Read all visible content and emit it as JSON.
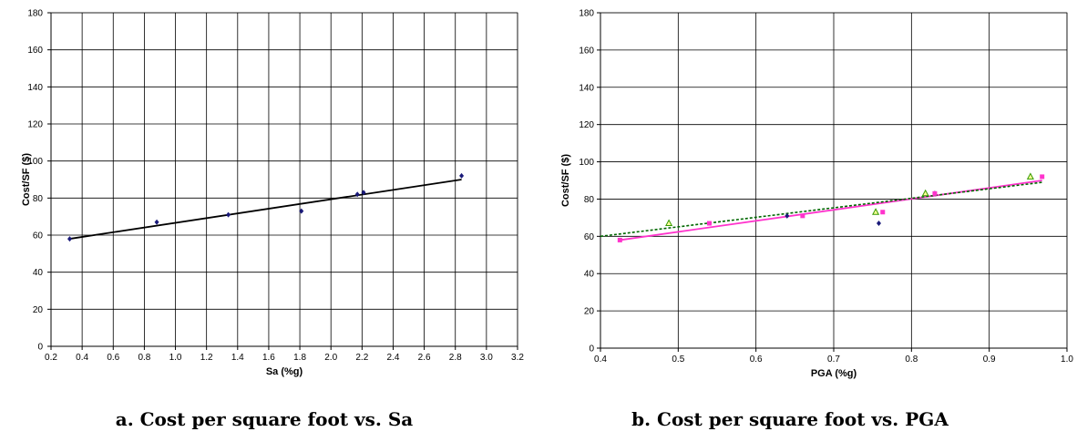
{
  "chart_data": [
    {
      "type": "scatter",
      "caption": "a. Cost per square foot vs. Sa",
      "xlabel": "Sa (%g)",
      "ylabel": "Cost/SF ($)",
      "xlim": [
        0.2,
        3.2
      ],
      "ylim": [
        0,
        180
      ],
      "xticks": [
        "0.2",
        "0.4",
        "0.6",
        "0.8",
        "1.0",
        "1.2",
        "1.4",
        "1.6",
        "1.8",
        "2.0",
        "2.2",
        "2.4",
        "2.6",
        "2.8",
        "3.0",
        "3.2"
      ],
      "yticks": [
        "0",
        "20",
        "40",
        "60",
        "80",
        "100",
        "120",
        "140",
        "160",
        "180"
      ],
      "grid": true,
      "series": [
        {
          "marker": "diamond",
          "color": "#1a1a7a",
          "points": [
            [
              0.32,
              58
            ],
            [
              0.88,
              67
            ],
            [
              1.34,
              71
            ],
            [
              1.81,
              73
            ],
            [
              2.17,
              82
            ],
            [
              2.21,
              83
            ],
            [
              2.84,
              92
            ]
          ]
        }
      ],
      "trendlines": [
        {
          "color": "#000000",
          "style": "solid",
          "from": [
            0.32,
            58
          ],
          "to": [
            2.84,
            90
          ]
        }
      ]
    },
    {
      "type": "scatter",
      "caption": "b. Cost per square foot vs. PGA",
      "xlabel": "PGA (%g)",
      "ylabel": "Cost/SF ($)",
      "xlim": [
        0.4,
        1.0
      ],
      "ylim": [
        0,
        180
      ],
      "xticks": [
        "0.4",
        "0.5",
        "0.6",
        "0.7",
        "0.8",
        "0.9",
        "1.0"
      ],
      "yticks": [
        "0",
        "20",
        "40",
        "60",
        "80",
        "100",
        "120",
        "140",
        "160",
        "180"
      ],
      "grid": true,
      "series": [
        {
          "marker": "diamond",
          "color": "#1a1a7a",
          "points": [
            [
              0.64,
              71
            ],
            [
              0.758,
              67
            ],
            [
              0.83,
              83
            ]
          ]
        },
        {
          "marker": "square",
          "color": "#ff33cc",
          "points": [
            [
              0.425,
              58
            ],
            [
              0.54,
              67
            ],
            [
              0.66,
              71
            ],
            [
              0.763,
              73
            ],
            [
              0.83,
              83
            ],
            [
              0.968,
              92
            ]
          ]
        },
        {
          "marker": "triangle",
          "color": "#339900",
          "points": [
            [
              0.488,
              67
            ],
            [
              0.754,
              73
            ],
            [
              0.818,
              83
            ],
            [
              0.953,
              92
            ]
          ]
        }
      ],
      "trendlines": [
        {
          "color": "#ff33cc",
          "style": "solid",
          "from": [
            0.425,
            58
          ],
          "to": [
            0.968,
            90
          ]
        },
        {
          "color": "#006600",
          "style": "dashed",
          "from": [
            0.4,
            60
          ],
          "to": [
            0.968,
            89
          ]
        }
      ]
    }
  ]
}
